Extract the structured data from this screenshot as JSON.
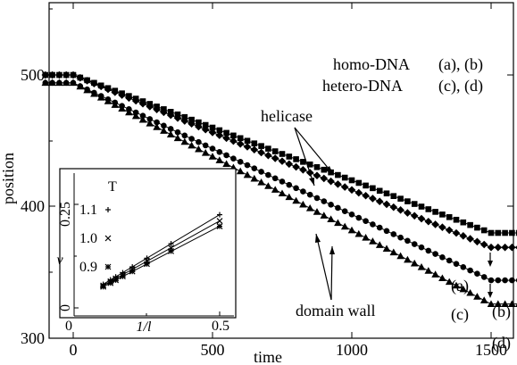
{
  "chart_data": [
    {
      "type": "scatter",
      "xlabel": "time",
      "ylabel": "position",
      "xlim": [
        -100,
        1800
      ],
      "ylim": [
        300,
        550
      ],
      "xticks": [
        "0",
        "500",
        "1000",
        "1500"
      ],
      "yticks": [
        "300",
        "400",
        "500"
      ],
      "series": [
        {
          "label": "(a)",
          "marker": "square",
          "start": 500,
          "end": 380
        },
        {
          "label": "(b)",
          "marker": "diamond",
          "start": 500,
          "end": 369
        },
        {
          "label": "(c)",
          "marker": "circle",
          "start": 494,
          "end": 344
        },
        {
          "label": "(d)",
          "marker": "triangle",
          "start": 494,
          "end": 326
        }
      ],
      "legend": [
        {
          "text": "homo-DNA",
          "labels": "(a), (b)"
        },
        {
          "text": "hetero-DNA",
          "labels": "(c), (d)"
        }
      ],
      "annotations": [
        "helicase",
        "domain wall"
      ],
      "arrow_time": 1500,
      "inset": {
        "type": "scatter",
        "xlabel": "1/l",
        "ylabel": "v",
        "xlim": [
          0,
          0.55
        ],
        "ylim": [
          0,
          0.28
        ],
        "xticks": [
          "0",
          "0.5"
        ],
        "yticks": [
          "0",
          "0.25"
        ],
        "legend_title": "T",
        "series": [
          {
            "label": "1.1",
            "marker": "plus",
            "x": [
              0.1,
              0.125,
              0.143,
              0.167,
              0.2,
              0.25,
              0.333,
              0.5
            ],
            "y": [
              0.057,
              0.068,
              0.075,
              0.085,
              0.099,
              0.12,
              0.155,
              0.225
            ]
          },
          {
            "label": "1.0",
            "marker": "cross",
            "x": [
              0.1,
              0.125,
              0.143,
              0.167,
              0.2,
              0.25,
              0.333,
              0.5
            ],
            "y": [
              0.054,
              0.064,
              0.071,
              0.08,
              0.093,
              0.113,
              0.145,
              0.21
            ]
          },
          {
            "label": "0.9",
            "marker": "star",
            "x": [
              0.1,
              0.125,
              0.143,
              0.167,
              0.2,
              0.25,
              0.333,
              0.5
            ],
            "y": [
              0.051,
              0.06,
              0.067,
              0.076,
              0.088,
              0.106,
              0.137,
              0.197
            ]
          }
        ]
      }
    }
  ]
}
